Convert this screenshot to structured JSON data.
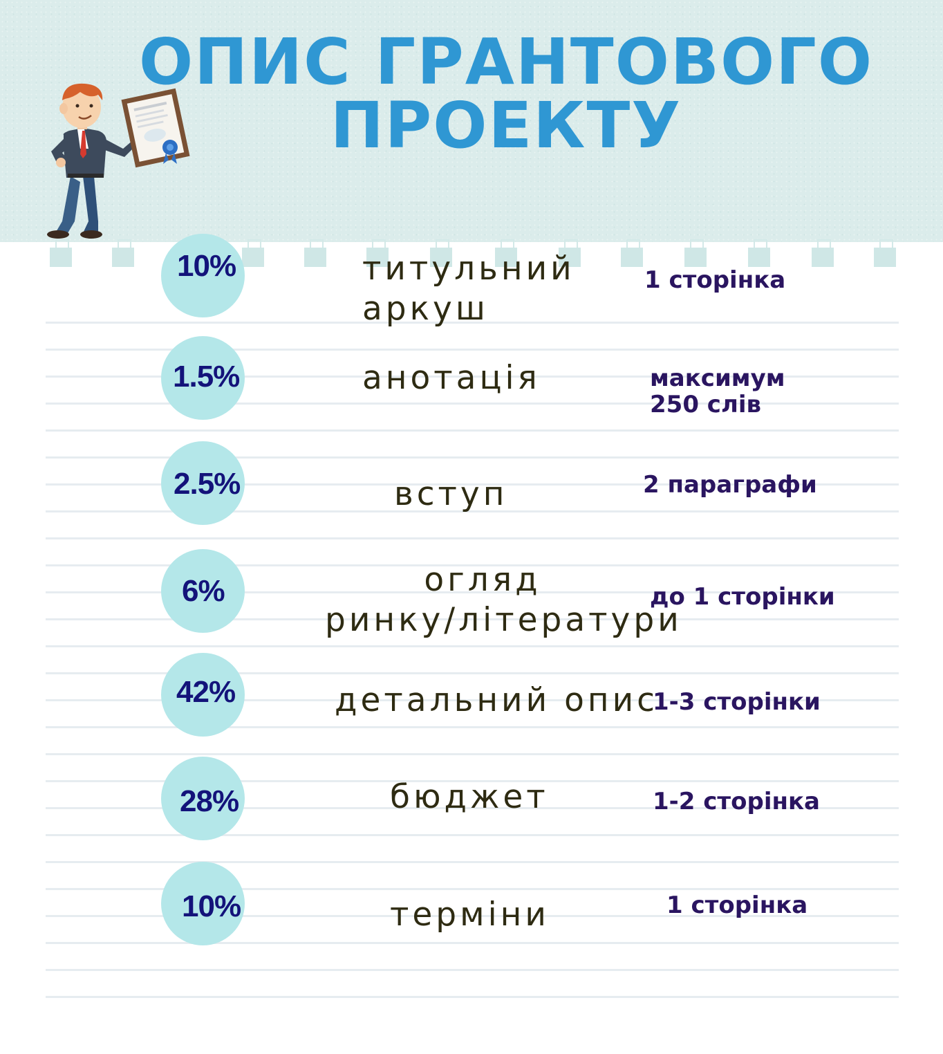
{
  "title": {
    "line1": "ОПИС ГРАНТОВОГО",
    "line2": "ПРОЕКТУ"
  },
  "illustration": {
    "icon": "businessman-with-certificate-icon"
  },
  "colors": {
    "title": "#2f97d3",
    "header_bg": "#dbeceb",
    "circle": "#b4e7e9",
    "percent_text": "#13137a",
    "label_text": "#2e2b12",
    "note_text": "#2a1560"
  },
  "rows": [
    {
      "percent": "10%",
      "label_line1": "титульний",
      "label_line2": "аркуш",
      "note_line1": "1 сторінка",
      "note_line2": ""
    },
    {
      "percent": "1.5%",
      "label_line1": "анотація",
      "label_line2": "",
      "note_line1": "максимум",
      "note_line2": "250 слів"
    },
    {
      "percent": "2.5%",
      "label_line1": "вступ",
      "label_line2": "",
      "note_line1": "2 параграфи",
      "note_line2": ""
    },
    {
      "percent": "6%",
      "label_line1": "огляд",
      "label_line2": "ринку/літератури",
      "note_line1": "до 1 сторінки",
      "note_line2": ""
    },
    {
      "percent": "42%",
      "label_line1": "детальний опис",
      "label_line2": "",
      "note_line1": "1-3 сторінки",
      "note_line2": ""
    },
    {
      "percent": "28%",
      "label_line1": "бюджет",
      "label_line2": "",
      "note_line1": "1-2 сторінка",
      "note_line2": ""
    },
    {
      "percent": "10%",
      "label_line1": "терміни",
      "label_line2": "",
      "note_line1": "1 сторінка",
      "note_line2": ""
    }
  ]
}
